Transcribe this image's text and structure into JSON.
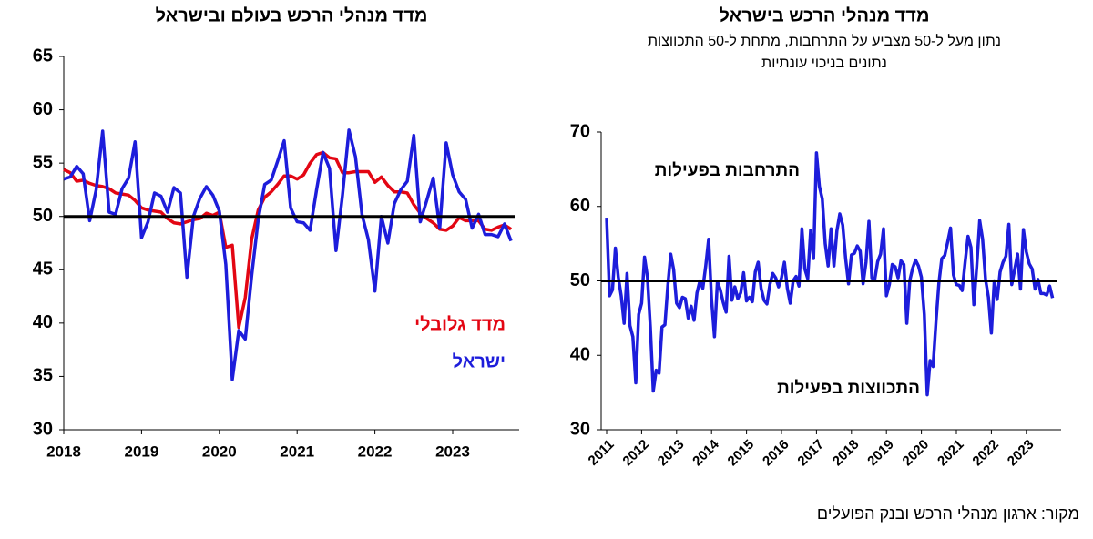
{
  "chart_data": [
    {
      "type": "line",
      "title": "מדד מנהלי הרכש בעולם ובישראל",
      "categories": [
        "2018",
        null,
        null,
        null,
        null,
        null,
        null,
        null,
        null,
        null,
        null,
        null,
        "2019",
        null,
        null,
        null,
        null,
        null,
        null,
        null,
        null,
        null,
        null,
        null,
        "2020",
        null,
        null,
        null,
        null,
        null,
        null,
        null,
        null,
        null,
        null,
        null,
        "2021",
        null,
        null,
        null,
        null,
        null,
        null,
        null,
        null,
        null,
        null,
        null,
        "2022",
        null,
        null,
        null,
        null,
        null,
        null,
        null,
        null,
        null,
        null,
        null,
        "2023",
        null,
        null,
        null,
        null,
        null,
        null,
        null,
        null,
        null
      ],
      "series": [
        {
          "name": "מדד גלובלי",
          "color": "#e30613",
          "values": [
            54.4,
            54.1,
            53.3,
            53.4,
            53.1,
            52.9,
            52.8,
            52.6,
            52.2,
            52.1,
            52.0,
            51.5,
            50.8,
            50.6,
            50.5,
            50.4,
            49.8,
            49.4,
            49.3,
            49.5,
            49.7,
            49.8,
            50.3,
            50.1,
            50.4,
            47.1,
            47.3,
            39.6,
            42.4,
            47.9,
            50.6,
            51.8,
            52.3,
            53.0,
            53.8,
            53.8,
            53.5,
            53.9,
            55.0,
            55.8,
            56.0,
            55.5,
            55.4,
            54.1,
            54.1,
            54.2,
            54.2,
            54.2,
            53.2,
            53.7,
            52.9,
            52.3,
            52.3,
            52.2,
            51.1,
            50.3,
            49.8,
            49.4,
            48.8,
            48.7,
            49.1,
            49.9,
            49.6,
            49.6,
            49.6,
            48.8,
            48.7,
            49.0,
            49.2,
            48.8
          ]
        },
        {
          "name": "ישראל",
          "color": "#1d1ddb",
          "values": [
            53.5,
            53.7,
            54.7,
            54.0,
            49.6,
            52.5,
            58.0,
            50.4,
            50.2,
            52.6,
            53.6,
            57.0,
            48.0,
            49.5,
            52.2,
            51.9,
            50.4,
            52.7,
            52.2,
            44.3,
            50.0,
            51.7,
            52.8,
            52.0,
            50.5,
            45.5,
            34.7,
            39.3,
            38.5,
            44.5,
            49.7,
            53.0,
            53.4,
            55.2,
            57.1,
            50.8,
            49.5,
            49.4,
            48.7,
            52.5,
            56.0,
            54.5,
            46.8,
            52.0,
            58.1,
            55.6,
            50.2,
            47.8,
            43.0,
            50.0,
            47.5,
            51.2,
            52.5,
            53.3,
            57.6,
            49.5,
            51.5,
            53.6,
            48.9,
            56.9,
            53.9,
            52.3,
            51.6,
            48.9,
            50.2,
            48.3,
            48.3,
            48.1,
            49.3,
            47.7
          ]
        }
      ],
      "ylim": [
        30,
        65
      ],
      "yticks": [
        30,
        35,
        40,
        45,
        50,
        55,
        60,
        65
      ],
      "hline": 50
    },
    {
      "type": "line",
      "title": "מדד מנהלי הרכש בישראל",
      "subtitle": [
        "נתון מעל ל-50 מצביע על התרחבות, מתחת ל-50 התכווצות",
        "נתונים בניכוי עונתיות"
      ],
      "annotations": [
        "התרחבות בפעילות",
        "התכווצות בפעילות"
      ],
      "categories": [
        "2011",
        null,
        null,
        null,
        null,
        null,
        null,
        null,
        null,
        null,
        null,
        null,
        "2012",
        null,
        null,
        null,
        null,
        null,
        null,
        null,
        null,
        null,
        null,
        null,
        "2013",
        null,
        null,
        null,
        null,
        null,
        null,
        null,
        null,
        null,
        null,
        null,
        "2014",
        null,
        null,
        null,
        null,
        null,
        null,
        null,
        null,
        null,
        null,
        null,
        "2015",
        null,
        null,
        null,
        null,
        null,
        null,
        null,
        null,
        null,
        null,
        null,
        "2016",
        null,
        null,
        null,
        null,
        null,
        null,
        null,
        null,
        null,
        null,
        null,
        "2017",
        null,
        null,
        null,
        null,
        null,
        null,
        null,
        null,
        null,
        null,
        null,
        "2018",
        null,
        null,
        null,
        null,
        null,
        null,
        null,
        null,
        null,
        null,
        null,
        "2019",
        null,
        null,
        null,
        null,
        null,
        null,
        null,
        null,
        null,
        null,
        null,
        "2020",
        null,
        null,
        null,
        null,
        null,
        null,
        null,
        null,
        null,
        null,
        null,
        "2021",
        null,
        null,
        null,
        null,
        null,
        null,
        null,
        null,
        null,
        null,
        null,
        "2022",
        null,
        null,
        null,
        null,
        null,
        null,
        null,
        null,
        null,
        null,
        null,
        "2023",
        null,
        null,
        null,
        null,
        null,
        null,
        null,
        null,
        null
      ],
      "series": [
        {
          "color": "#1d1ddb",
          "values": [
            58.5,
            48.0,
            48.8,
            54.4,
            50.5,
            48.0,
            44.3,
            51.0,
            44.0,
            42.5,
            36.3,
            45.5,
            47.0,
            53.2,
            50.5,
            43.8,
            35.2,
            38.0,
            37.6,
            43.8,
            44.1,
            49.4,
            53.6,
            51.5,
            47.0,
            46.4,
            47.8,
            47.6,
            45.0,
            46.6,
            44.7,
            48.4,
            50.0,
            49.0,
            52.0,
            55.6,
            47.5,
            42.5,
            49.9,
            48.8,
            47.1,
            45.8,
            53.3,
            47.4,
            49.2,
            47.6,
            48.4,
            51.1,
            47.3,
            47.8,
            47.2,
            51.2,
            52.5,
            49.0,
            47.4,
            46.9,
            49.5,
            51.0,
            50.4,
            49.2,
            50.4,
            52.5,
            49.0,
            47.0,
            50.0,
            50.6,
            49.3,
            57.0,
            51.6,
            50.3,
            56.8,
            53.0,
            67.2,
            62.7,
            61.0,
            55.0,
            52.0,
            57.0,
            52.0,
            56.7,
            59.0,
            57.5,
            53.0,
            49.6,
            53.5,
            53.7,
            54.7,
            54.0,
            49.6,
            52.5,
            58.0,
            50.4,
            50.2,
            52.6,
            53.6,
            57.0,
            48.0,
            49.5,
            52.2,
            51.9,
            50.4,
            52.7,
            52.2,
            44.3,
            50.0,
            51.7,
            52.8,
            52.0,
            50.5,
            45.5,
            34.7,
            39.3,
            38.5,
            44.5,
            49.7,
            53.0,
            53.4,
            55.2,
            57.1,
            50.8,
            49.5,
            49.4,
            48.7,
            52.5,
            56.0,
            54.5,
            46.8,
            52.0,
            58.1,
            55.6,
            50.2,
            47.8,
            43.0,
            50.0,
            47.5,
            51.2,
            52.5,
            53.3,
            57.6,
            49.5,
            51.5,
            53.6,
            48.9,
            56.9,
            53.9,
            52.3,
            51.6,
            48.9,
            50.2,
            48.3,
            48.3,
            48.1,
            49.3,
            47.7
          ]
        }
      ],
      "ylim": [
        30,
        70
      ],
      "yticks": [
        30,
        40,
        50,
        60,
        70
      ],
      "hline": 50
    }
  ],
  "source": "מקור: ארגון מנהלי הרכש ובנק הפועלים"
}
